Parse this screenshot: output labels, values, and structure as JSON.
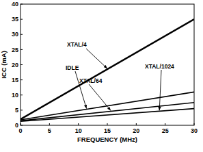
{
  "chart_data": {
    "type": "line",
    "x_label": "FREQUENCY (MHz)",
    "y_label": "ICC (mA)",
    "x": [
      0,
      30
    ],
    "series": [
      {
        "name": "XTAL/4",
        "color": "#000000",
        "values": [
          2,
          35
        ]
      },
      {
        "name": "IDLE",
        "color": "#000000",
        "values": [
          1.8,
          11
        ]
      },
      {
        "name": "XTAL/64",
        "color": "#000000",
        "values": [
          1.5,
          7.5
        ]
      },
      {
        "name": "XTAL/1024",
        "color": "#000000",
        "values": [
          1.3,
          5.5
        ]
      }
    ],
    "xlim": [
      0,
      30
    ],
    "xticks": [
      0,
      5,
      10,
      15,
      20,
      25,
      30
    ],
    "ylim": [
      0,
      40
    ],
    "yticks": [
      0,
      5,
      10,
      15,
      20,
      25,
      30,
      35,
      40
    ],
    "grid": false
  }
}
